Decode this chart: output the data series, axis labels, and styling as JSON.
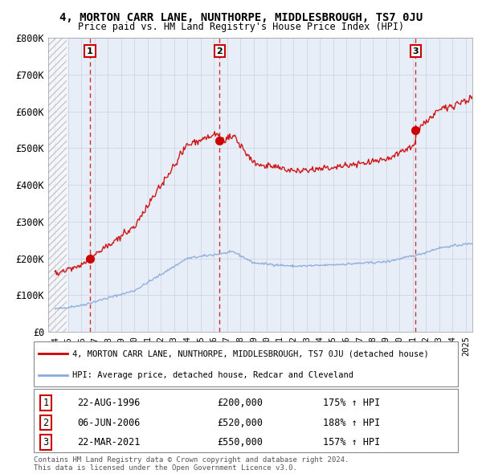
{
  "title": "4, MORTON CARR LANE, NUNTHORPE, MIDDLESBROUGH, TS7 0JU",
  "subtitle": "Price paid vs. HM Land Registry's House Price Index (HPI)",
  "ylim": [
    0,
    800000
  ],
  "yticks": [
    0,
    100000,
    200000,
    300000,
    400000,
    500000,
    600000,
    700000,
    800000
  ],
  "ytick_labels": [
    "£0",
    "£100K",
    "£200K",
    "£300K",
    "£400K",
    "£500K",
    "£600K",
    "£700K",
    "£800K"
  ],
  "xmin": 1993.5,
  "xmax": 2025.5,
  "sale_dates": [
    1996.645,
    2006.43,
    2021.22
  ],
  "sale_prices": [
    200000,
    520000,
    550000
  ],
  "sale_labels": [
    "1",
    "2",
    "3"
  ],
  "sale_date_strs": [
    "22-AUG-1996",
    "06-JUN-2006",
    "22-MAR-2021"
  ],
  "sale_price_strs": [
    "£200,000",
    "£520,000",
    "£550,000"
  ],
  "sale_hpi_strs": [
    "175% ↑ HPI",
    "188% ↑ HPI",
    "157% ↑ HPI"
  ],
  "house_color": "#cc0000",
  "hpi_color": "#88aadd",
  "background_color": "#e8eef8",
  "grid_color": "#c8d0e0",
  "legend_label_house": "4, MORTON CARR LANE, NUNTHORPE, MIDDLESBROUGH, TS7 0JU (detached house)",
  "legend_label_hpi": "HPI: Average price, detached house, Redcar and Cleveland",
  "footer1": "Contains HM Land Registry data © Crown copyright and database right 2024.",
  "footer2": "This data is licensed under the Open Government Licence v3.0."
}
